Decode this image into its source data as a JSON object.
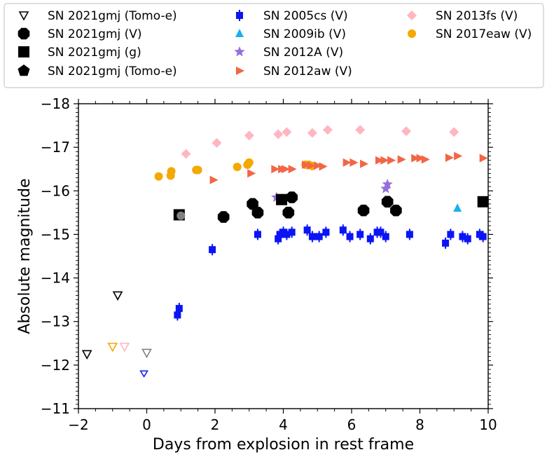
{
  "chart_data": {
    "type": "scatter",
    "title": "",
    "xlabel": "Days from explosion in rest frame",
    "ylabel": "Absolute magnitude",
    "xlim": [
      -2,
      10
    ],
    "ylim": [
      -11,
      -18
    ],
    "y_inverted": true,
    "x_ticks": [
      -2,
      0,
      2,
      4,
      6,
      8,
      10
    ],
    "x_tick_labels": [
      "−2",
      "0",
      "2",
      "4",
      "6",
      "8",
      "10"
    ],
    "y_ticks": [
      -11,
      -12,
      -13,
      -14,
      -15,
      -16,
      -17,
      -18
    ],
    "y_tick_labels": [
      "−11",
      "−12",
      "−13",
      "−14",
      "−15",
      "−16",
      "−17",
      "−18"
    ],
    "grid": false,
    "legend_position": "top",
    "legend_columns": 3,
    "series": [
      {
        "name": "SN 2021gmj (Tomo-e)",
        "marker": "triangle-down-open",
        "color": "#000000",
        "points": [
          [
            -1.75,
            -12.25
          ],
          [
            -0.85,
            -13.6
          ]
        ]
      },
      {
        "name": "SN 2021gmj (V)",
        "marker": "octagon",
        "color": "#000000",
        "points": [
          [
            2.25,
            -15.4
          ],
          [
            3.1,
            -15.7
          ],
          [
            3.25,
            -15.5
          ],
          [
            4.15,
            -15.5
          ],
          [
            4.25,
            -15.85
          ],
          [
            6.35,
            -15.55
          ],
          [
            7.05,
            -15.75
          ],
          [
            7.3,
            -15.55
          ]
        ]
      },
      {
        "name": "SN 2021gmj (g)",
        "marker": "square",
        "color": "#000000",
        "points": [
          [
            0.95,
            -15.45
          ],
          [
            3.95,
            -15.8
          ],
          [
            9.85,
            -15.75
          ]
        ]
      },
      {
        "name": "SN 2021gmj (Tomo-e)",
        "marker": "pentagon",
        "color": "#000000",
        "points": []
      },
      {
        "name": "SN 2005cs (V)",
        "marker": "square-small",
        "color": "#0a14f5",
        "points": [
          [
            0.9,
            -13.15
          ],
          [
            0.95,
            -13.3
          ],
          [
            1.92,
            -14.65
          ],
          [
            3.25,
            -15.0
          ],
          [
            3.85,
            -14.9
          ],
          [
            3.9,
            -15.0
          ],
          [
            4.0,
            -15.05
          ],
          [
            4.1,
            -15.0
          ],
          [
            4.25,
            -15.05
          ],
          [
            4.7,
            -15.1
          ],
          [
            4.85,
            -14.95
          ],
          [
            5.05,
            -14.95
          ],
          [
            5.25,
            -15.05
          ],
          [
            5.75,
            -15.1
          ],
          [
            5.95,
            -14.95
          ],
          [
            6.25,
            -15.0
          ],
          [
            6.55,
            -14.9
          ],
          [
            6.75,
            -15.05
          ],
          [
            6.85,
            -15.05
          ],
          [
            7.0,
            -14.95
          ],
          [
            7.7,
            -15.0
          ],
          [
            8.75,
            -14.8
          ],
          [
            8.9,
            -15.0
          ],
          [
            9.25,
            -14.95
          ],
          [
            9.4,
            -14.9
          ],
          [
            9.75,
            -15.0
          ],
          [
            9.85,
            -14.95
          ]
        ]
      },
      {
        "name": "SN 2009ib (V)",
        "marker": "triangle-up",
        "color": "#1ab0f0",
        "points": [
          [
            9.1,
            -15.6
          ]
        ]
      },
      {
        "name": "SN 2012A (V)",
        "marker": "star",
        "color": "#9370db",
        "points": [
          [
            3.8,
            -15.85
          ],
          [
            7.0,
            -16.05
          ],
          [
            7.05,
            -16.15
          ]
        ]
      },
      {
        "name": "SN 2012aw (V)",
        "marker": "triangle-right",
        "color": "#f26645",
        "points": [
          [
            1.95,
            -16.25
          ],
          [
            3.05,
            -16.4
          ],
          [
            3.75,
            -16.5
          ],
          [
            3.95,
            -16.5
          ],
          [
            4.05,
            -16.5
          ],
          [
            4.25,
            -16.5
          ],
          [
            4.65,
            -16.6
          ],
          [
            4.8,
            -16.58
          ],
          [
            5.0,
            -16.58
          ],
          [
            5.15,
            -16.56
          ],
          [
            5.85,
            -16.65
          ],
          [
            6.05,
            -16.65
          ],
          [
            6.35,
            -16.62
          ],
          [
            6.8,
            -16.7
          ],
          [
            6.95,
            -16.7
          ],
          [
            7.15,
            -16.7
          ],
          [
            7.45,
            -16.72
          ],
          [
            7.85,
            -16.75
          ],
          [
            8.0,
            -16.75
          ],
          [
            8.15,
            -16.72
          ],
          [
            8.85,
            -16.76
          ],
          [
            9.1,
            -16.8
          ],
          [
            9.85,
            -16.75
          ]
        ]
      },
      {
        "name": "SN 2013fs (V)",
        "marker": "diamond",
        "color": "#ffb6c1",
        "points": [
          [
            1.15,
            -16.85
          ],
          [
            2.05,
            -17.1
          ],
          [
            3.0,
            -17.27
          ],
          [
            3.85,
            -17.3
          ],
          [
            4.1,
            -17.35
          ],
          [
            4.85,
            -17.33
          ],
          [
            5.3,
            -17.4
          ],
          [
            6.25,
            -17.4
          ],
          [
            7.6,
            -17.37
          ],
          [
            9.0,
            -17.35
          ]
        ]
      },
      {
        "name": "SN 2017eaw (V)",
        "marker": "circle",
        "color": "#f5a800",
        "points": [
          [
            0.35,
            -16.33
          ],
          [
            0.7,
            -16.35
          ],
          [
            0.72,
            -16.45
          ],
          [
            1.45,
            -16.48
          ],
          [
            1.5,
            -16.48
          ],
          [
            2.65,
            -16.55
          ],
          [
            2.95,
            -16.6
          ],
          [
            3.0,
            -16.65
          ],
          [
            4.65,
            -16.6
          ],
          [
            4.75,
            -16.6
          ],
          [
            4.85,
            -16.57
          ]
        ]
      }
    ],
    "extra_markers": [
      {
        "x": -1.0,
        "y": -12.42,
        "marker": "triangle-down-open",
        "color": "#f5a800"
      },
      {
        "x": -0.65,
        "y": -12.42,
        "marker": "triangle-down-open",
        "color": "#ffb6c1"
      },
      {
        "x": -0.08,
        "y": -11.8,
        "marker": "triangle-down-open-small",
        "color": "#0a14f5"
      },
      {
        "x": 0.0,
        "y": -12.28,
        "marker": "triangle-down-open",
        "color": "#808080"
      },
      {
        "x": 1.0,
        "y": -15.43,
        "marker": "circle",
        "color": "#808080"
      }
    ]
  }
}
